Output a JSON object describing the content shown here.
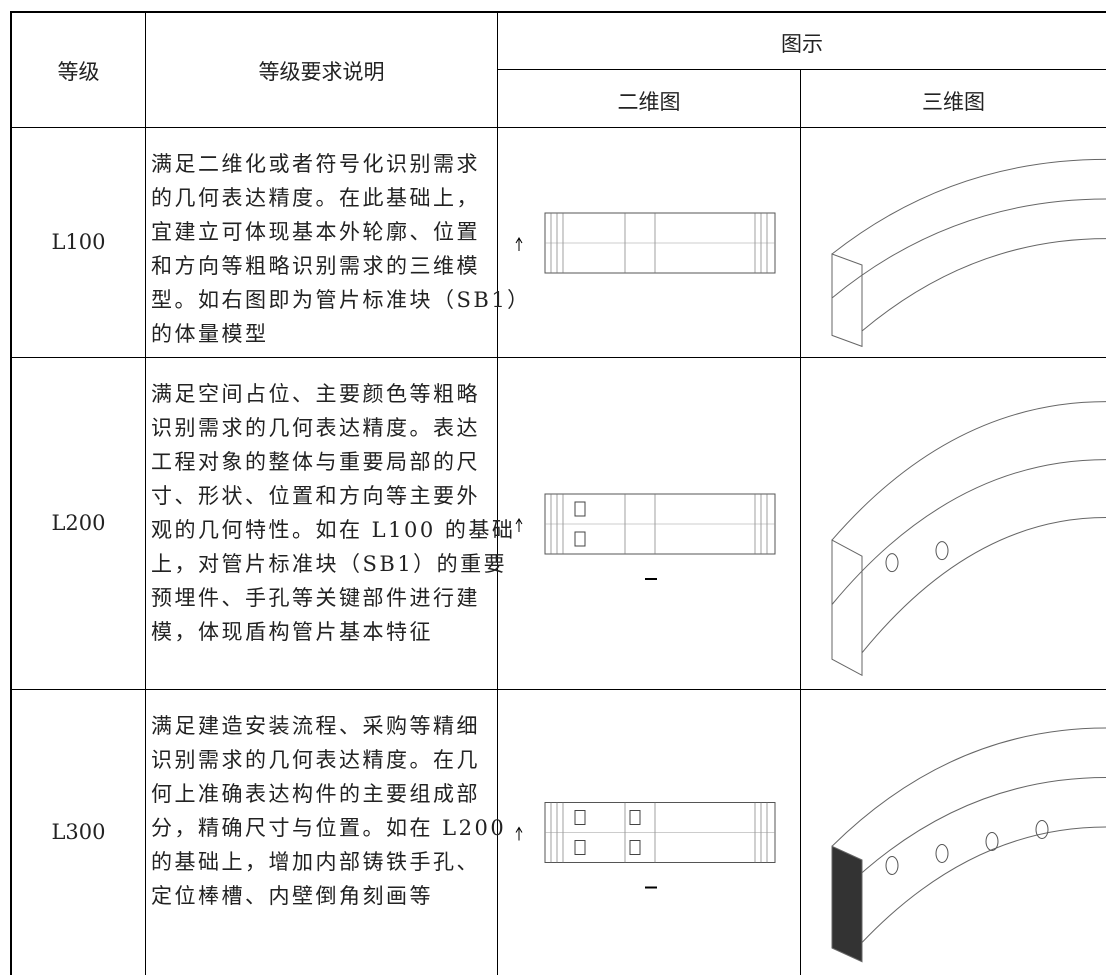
{
  "table": {
    "header": {
      "level": "等级",
      "description": "等级要求说明",
      "illustration": "图示",
      "drawing_2d": "二维图",
      "drawing_3d": "三维图"
    },
    "rows": [
      {
        "level": "L100",
        "description": [
          "满足二维化或者符号化识别需求",
          "的几何表达精度。在此基础上，",
          "宜建立可体现基本外轮廓、位置",
          "和方向等粗略识别需求的三维模",
          "型。如右图即为管片标准块（SB1）",
          "的体量模型"
        ]
      },
      {
        "level": "L200",
        "description": [
          "满足空间占位、主要颜色等粗略",
          "识别需求的几何表达精度。表达",
          "工程对象的整体与重要局部的尺",
          "寸、形状、位置和方向等主要外",
          "观的几何特性。如在 L100 的基础",
          "上，对管片标准块（SB1）的重要",
          "预埋件、手孔等关键部件进行建",
          "模，体现盾构管片基本特征"
        ]
      },
      {
        "level": "L300",
        "description": [
          "满足建造安装流程、采购等精细",
          "识别需求的几何表达精度。在几",
          "何上准确表达构件的主要组成部",
          "分，精确尺寸与位置。如在 L200",
          "的基础上，增加内部铸铁手孔、",
          "定位棒槽、内壁倒角刻画等"
        ]
      }
    ]
  }
}
